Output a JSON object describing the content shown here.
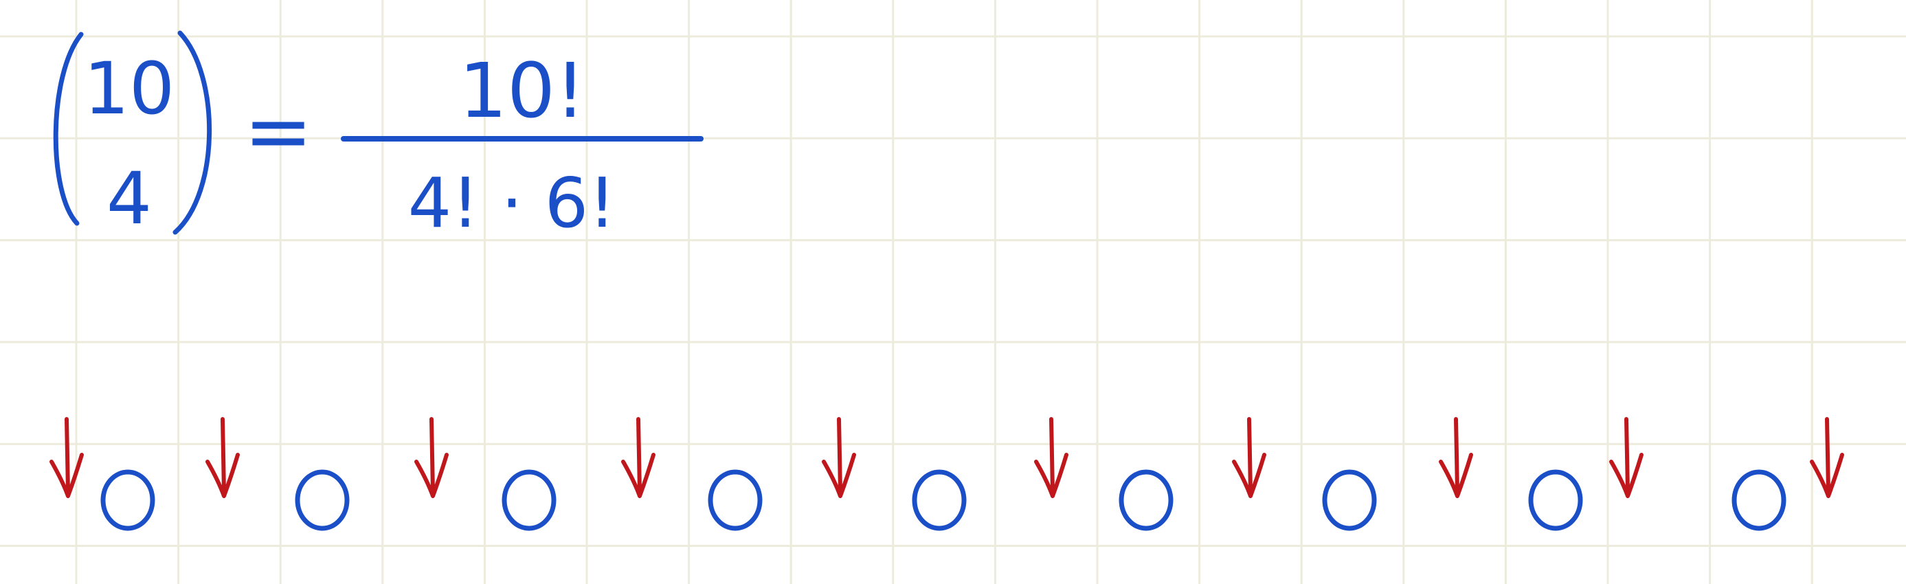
{
  "formula": {
    "binomial_top": "10",
    "binomial_bottom": "4",
    "equals": "=",
    "numerator": "10!",
    "denominator": "4! · 6!"
  }
}
